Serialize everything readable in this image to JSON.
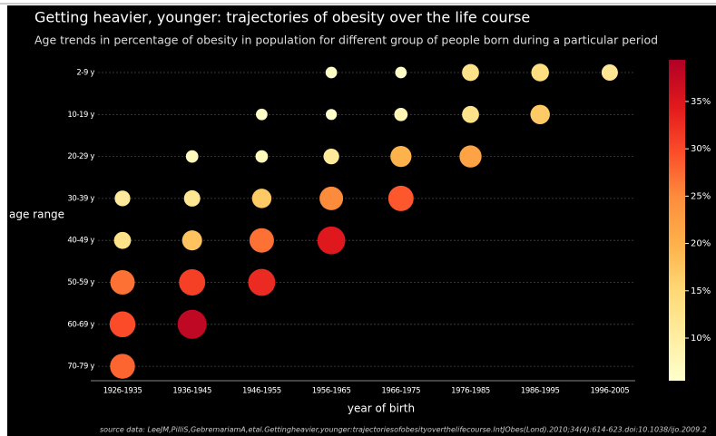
{
  "chart_data": {
    "type": "bubble",
    "title": "Getting heavier, younger: trajectories of obesity over the life course",
    "subtitle": "Age trends in percentage of obesity in population for different group of people born during a particular period",
    "x_label": "year of birth",
    "y_label": "age range",
    "source": "source data: LeeJM,PilliS,GebremariamA,etal.Gettingheavier,younger:trajectoriesofobesityoverthelifecourse.IntJObes(Lond).2010;34(4):614-623.doi:10.1038/ijo.2009.2",
    "x_categories": [
      "1926-1935",
      "1936-1945",
      "1946-1955",
      "1956-1965",
      "1966-1975",
      "1976-1985",
      "1986-1995",
      "1996-2005"
    ],
    "y_categories": [
      "2-9 y",
      "10-19 y",
      "20-29 y",
      "30-39 y",
      "40-49 y",
      "50-59 y",
      "60-69 y",
      "70-79 y"
    ],
    "x": [
      "1956-1965",
      "1966-1975",
      "1976-1985",
      "1986-1995",
      "1996-2005",
      "1946-1955",
      "1956-1965",
      "1966-1975",
      "1976-1985",
      "1986-1995",
      "1936-1945",
      "1946-1955",
      "1956-1965",
      "1966-1975",
      "1976-1985",
      "1926-1935",
      "1936-1945",
      "1946-1955",
      "1956-1965",
      "1966-1975",
      "1926-1935",
      "1936-1945",
      "1946-1955",
      "1956-1965",
      "1926-1935",
      "1936-1945",
      "1946-1955",
      "1926-1935",
      "1936-1945",
      "1926-1935"
    ],
    "y": [
      "2-9 y",
      "2-9 y",
      "2-9 y",
      "2-9 y",
      "2-9 y",
      "10-19 y",
      "10-19 y",
      "10-19 y",
      "10-19 y",
      "10-19 y",
      "20-29 y",
      "20-29 y",
      "20-29 y",
      "20-29 y",
      "20-29 y",
      "30-39 y",
      "30-39 y",
      "30-39 y",
      "30-39 y",
      "30-39 y",
      "40-49 y",
      "40-49 y",
      "40-49 y",
      "40-49 y",
      "50-59 y",
      "50-59 y",
      "50-59 y",
      "60-69 y",
      "60-69 y",
      "70-79 y"
    ],
    "values": [
      6,
      6,
      13,
      14,
      12,
      6,
      5.5,
      8,
      13,
      17,
      7,
      7,
      11,
      20,
      22,
      11,
      12,
      17,
      25,
      29,
      13,
      18,
      27,
      35,
      27,
      31,
      33,
      30,
      38,
      28
    ],
    "colorscale": "YlOrRd",
    "clim": [
      5.5,
      39.4
    ],
    "colorbar_ticks": [
      {
        "value": 10,
        "label": "10%"
      },
      {
        "value": 15,
        "label": "15%"
      },
      {
        "value": 20,
        "label": "20%"
      },
      {
        "value": 25,
        "label": "25%"
      },
      {
        "value": 30,
        "label": "30%"
      },
      {
        "value": 35,
        "label": "35%"
      }
    ],
    "grid": true
  }
}
